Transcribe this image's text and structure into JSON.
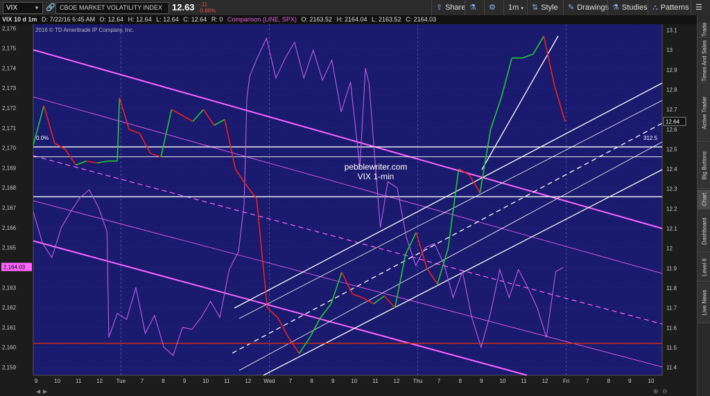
{
  "toolbar": {
    "symbol": "VIX",
    "description": "CBOE MARKET VOLATILITY INDEX",
    "last": "12.63",
    "net_change": "-.11",
    "pct_change": "-0.86%",
    "share": "Share",
    "timeframe": "1m",
    "style": "Style",
    "drawings": "Drawings",
    "studies": "Studies",
    "patterns": "Patterns"
  },
  "info_bar": {
    "title": "VIX 10 d 1m",
    "date": "D: 7/22/16 6:45 AM",
    "open": "O: 12.64",
    "high": "H: 12.64",
    "low": "L: 12.64",
    "close": "C: 12.64",
    "r": "R: 0",
    "comparison": "Comparison (LINE, SPX)",
    "c_open": "O: 2163.52",
    "c_high": "H: 2164.04",
    "c_low": "L: 2163.52",
    "c_close": "C: 2164.03"
  },
  "copyright": "2016 © TD Ameritrade IP Company, Inc.",
  "annotation_text": [
    "pebblewriter.com",
    "VIX 1-min"
  ],
  "fib_labels": {
    "top": "0.0%",
    "right": "312.5"
  },
  "side_tabs": [
    "Trade",
    "Times And Sales",
    "Active Trader",
    "Big Buttons",
    "Chart",
    "Dashboard",
    "Level II",
    "Live News"
  ],
  "active_tab": "Chart",
  "colors": {
    "background": "#1a1a6e",
    "spx_line": "#c060e0",
    "vix_up": "#22cc33",
    "vix_down": "#ee2222",
    "channel_magenta": "#ff66ff",
    "channel_white": "#ffffff",
    "support_red": "#dd3311",
    "spx_price_label": "#ff66ff"
  },
  "chart_data": {
    "type": "line",
    "title": "VIX 10 d 1m",
    "x_tick_labels": [
      "9",
      "10",
      "11",
      "12",
      "Tue",
      "7",
      "8",
      "9",
      "10",
      "11",
      "12",
      "Wed",
      "7",
      "8",
      "9",
      "10",
      "11",
      "12",
      "Thu",
      "7",
      "8",
      "9",
      "10",
      "11",
      "12",
      "Fri",
      "7",
      "8",
      "9",
      "10"
    ],
    "left_axis": {
      "ticks": [
        "2,159",
        "2,160",
        "2,161",
        "2,162",
        "2,163",
        "2,164",
        "2,165",
        "2,166",
        "2,167",
        "2,168",
        "2,169",
        "2,170",
        "2,171",
        "2,172",
        "2,173",
        "2,174",
        "2,175",
        "2,176"
      ],
      "range": [
        2158.6,
        2176.2
      ]
    },
    "right_axis": {
      "ticks": [
        "11.4",
        "11.5",
        "11.6",
        "11.7",
        "11.8",
        "11.9",
        "12",
        "12.1",
        "12.2",
        "12.3",
        "12.4",
        "12.5",
        "12.6",
        "12.7",
        "12.8",
        "12.9",
        "13",
        "13.1"
      ],
      "range": [
        11.36,
        13.13
      ]
    },
    "current_spx_label": "2,164.03",
    "current_vix_label": "12.64",
    "series": [
      {
        "name": "SPX",
        "axis": "left",
        "x": [
          0,
          0.5,
          1,
          1.5,
          2,
          2.5,
          3,
          3.5,
          3.95,
          4.05,
          4.5,
          5,
          5.5,
          6,
          6.5,
          7,
          7.5,
          8,
          8.5,
          9,
          9.5,
          10,
          10.5,
          11,
          11.3,
          11.45,
          11.6,
          12,
          12.5,
          13,
          13.5,
          14,
          14.5,
          15,
          15.5,
          16,
          16.5,
          17,
          17.5,
          17.8,
          18,
          18.3,
          18.6,
          19,
          19.5,
          20,
          20.5,
          21,
          21.5,
          22,
          22.5,
          23,
          23.5,
          24,
          24.5,
          25,
          25.5,
          26,
          26.5,
          27,
          27.5,
          28,
          28.4
        ],
        "values": [
          2166.8,
          2165.2,
          2164.5,
          2166.0,
          2166.8,
          2167.5,
          2167.9,
          2167.0,
          2165.8,
          2160.5,
          2161.7,
          2161.4,
          2163.0,
          2160.7,
          2161.6,
          2160.0,
          2159.6,
          2161.0,
          2160.9,
          2161.5,
          2162.3,
          2161.5,
          2163.9,
          2164.8,
          2167.2,
          2172.5,
          2173.6,
          2174.5,
          2175.5,
          2173.5,
          2174.5,
          2175.3,
          2173.5,
          2174.9,
          2173.4,
          2174.4,
          2171.8,
          2173.3,
          2169.0,
          2174.0,
          2173.2,
          2169.5,
          2166.0,
          2168.3,
          2168.0,
          2165.5,
          2164.1,
          2165.0,
          2165.2,
          2164.2,
          2162.5,
          2163.8,
          2161.5,
          2160.0,
          2161.7,
          2163.9,
          2162.5,
          2163.9,
          2163.0,
          2162.0,
          2160.5,
          2163.8,
          2164.0
        ]
      },
      {
        "name": "VIX",
        "axis": "right",
        "x": [
          0,
          0.5,
          1,
          1.5,
          2,
          2.5,
          3,
          3.5,
          3.95,
          4.05,
          4.5,
          5,
          5.5,
          6,
          6.5,
          7,
          7.5,
          8,
          8.5,
          9,
          9.5,
          10,
          10.5,
          11,
          11.5,
          12,
          12.5,
          13,
          13.5,
          14,
          14.5,
          15,
          15.5,
          16,
          16.5,
          17,
          17.5,
          18,
          18.5,
          19,
          19.5,
          20,
          20.5,
          21,
          21.5,
          22,
          22.5,
          23,
          23.5,
          24,
          24.5,
          25
        ],
        "values": [
          12.52,
          12.72,
          12.53,
          12.5,
          12.42,
          12.44,
          12.43,
          12.44,
          12.44,
          12.76,
          12.6,
          12.58,
          12.48,
          12.46,
          12.7,
          12.67,
          12.64,
          12.7,
          12.62,
          12.65,
          12.4,
          12.32,
          12.25,
          11.7,
          11.65,
          11.55,
          11.47,
          11.55,
          11.65,
          11.72,
          11.88,
          11.77,
          11.75,
          11.72,
          11.76,
          11.7,
          11.97,
          12.08,
          11.9,
          11.82,
          12.0,
          12.4,
          12.37,
          12.28,
          12.6,
          12.76,
          12.96,
          12.96,
          12.98,
          13.07,
          12.82,
          12.64
        ]
      }
    ],
    "reference_lines": [
      {
        "label": "0.0%",
        "axis": "left",
        "value": 2170.05
      },
      {
        "label": "",
        "axis": "left",
        "value": 2169.55
      },
      {
        "label": "",
        "axis": "left",
        "value": 2167.55
      },
      {
        "label": "",
        "axis": "left",
        "value": 2160.2
      }
    ],
    "grid": true,
    "legend": "none"
  }
}
